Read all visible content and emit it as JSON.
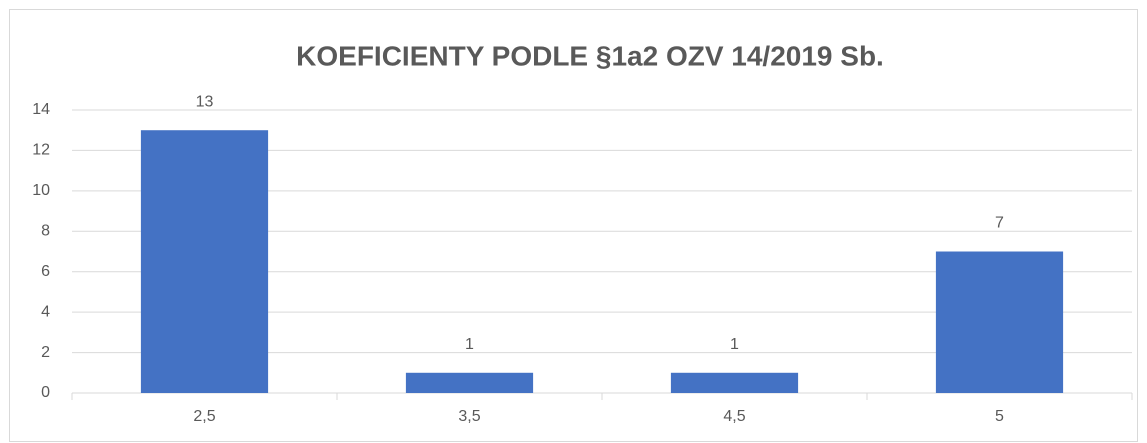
{
  "chart_data": {
    "type": "bar",
    "title": "KOEFICIENTY PODLE §1a2 OZV 14/2019 Sb.",
    "categories": [
      "2,5",
      "3,5",
      "4,5",
      "5"
    ],
    "values": [
      13,
      1,
      1,
      7
    ],
    "color": "#4472c4",
    "ylim": [
      0,
      14
    ],
    "yticks": [
      0,
      2,
      4,
      6,
      8,
      10,
      12,
      14
    ],
    "grid": true
  }
}
